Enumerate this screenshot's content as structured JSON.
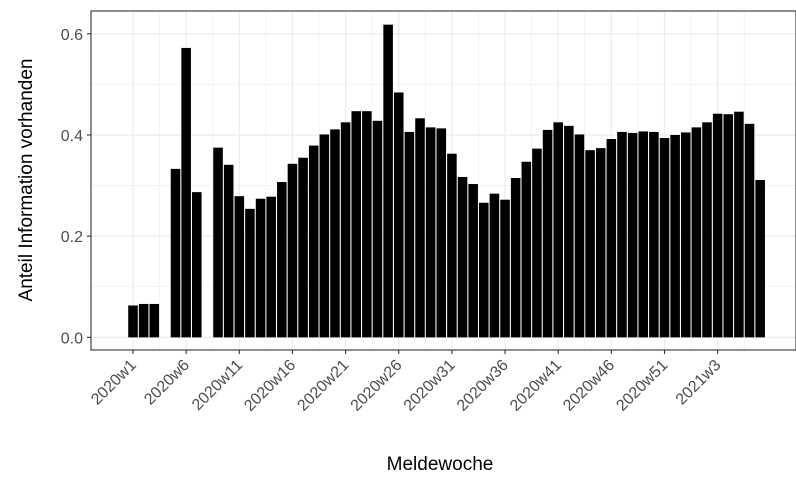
{
  "chart_data": {
    "type": "bar",
    "xlabel": "Meldewoche",
    "ylabel": "Anteil Information vorhanden",
    "ylim": [
      -0.025,
      0.645
    ],
    "grid": true,
    "bar_color": "#000000",
    "x_tick_labels": [
      "2020w1",
      "2020w6",
      "2020w11",
      "2020w16",
      "2020w21",
      "2020w26",
      "2020w31",
      "2020w36",
      "2020w41",
      "2020w46",
      "2020w51",
      "2021w3"
    ],
    "x_tick_every": 5,
    "y_ticks": [
      0.0,
      0.2,
      0.4,
      0.6
    ],
    "y_tick_labels": [
      "0.0",
      "0.2",
      "0.4",
      "0.6"
    ],
    "values": [
      0.063,
      0.066,
      0.066,
      null,
      0.333,
      0.572,
      0.287,
      null,
      0.375,
      0.341,
      0.279,
      0.254,
      0.274,
      0.278,
      0.307,
      0.343,
      0.355,
      0.379,
      0.401,
      0.411,
      0.425,
      0.447,
      0.447,
      0.428,
      0.618,
      0.484,
      0.406,
      0.433,
      0.415,
      0.413,
      0.363,
      0.317,
      0.303,
      0.266,
      0.284,
      0.272,
      0.315,
      0.347,
      0.373,
      0.41,
      0.425,
      0.418,
      0.401,
      0.37,
      0.374,
      0.392,
      0.406,
      0.404,
      0.407,
      0.406,
      0.394,
      0.4,
      0.405,
      0.415,
      0.425,
      0.442,
      0.441,
      0.446,
      0.422,
      0.311
    ]
  }
}
